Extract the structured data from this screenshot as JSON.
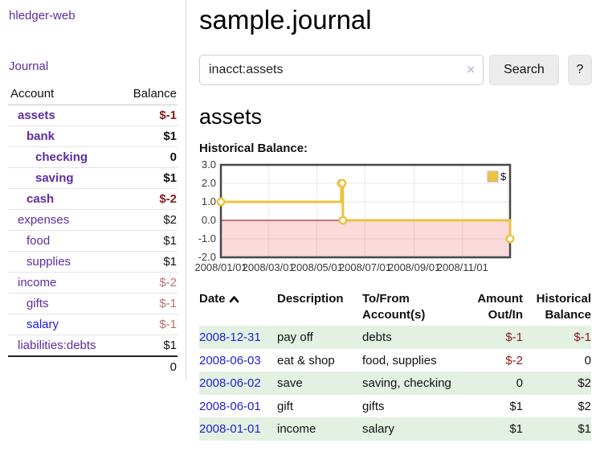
{
  "sidebar": {
    "app_title": "hledger-web",
    "journal_link": "Journal",
    "columns": {
      "account": "Account",
      "balance": "Balance"
    },
    "accounts": [
      {
        "name": "assets",
        "indent": 1,
        "bold": true,
        "balance": "$-1",
        "neg": "strong"
      },
      {
        "name": "bank",
        "indent": 2,
        "bold": true,
        "balance": "$1",
        "neg": "none"
      },
      {
        "name": "checking",
        "indent": 3,
        "bold": true,
        "balance": "0",
        "neg": "none"
      },
      {
        "name": "saving",
        "indent": 3,
        "bold": true,
        "balance": "$1",
        "neg": "none"
      },
      {
        "name": "cash",
        "indent": 2,
        "bold": true,
        "balance": "$-2",
        "neg": "strong"
      },
      {
        "name": "expenses",
        "indent": 1,
        "bold": false,
        "balance": "$2",
        "neg": "none"
      },
      {
        "name": "food",
        "indent": 2,
        "bold": false,
        "balance": "$1",
        "neg": "none"
      },
      {
        "name": "supplies",
        "indent": 2,
        "bold": false,
        "balance": "$1",
        "neg": "none"
      },
      {
        "name": "income",
        "indent": 1,
        "bold": false,
        "balance": "$-2",
        "neg": "soft"
      },
      {
        "name": "gifts",
        "indent": 2,
        "bold": false,
        "balance": "$-1",
        "neg": "soft"
      },
      {
        "name": "salary",
        "indent": 2,
        "bold": false,
        "balance": "$-1",
        "neg": "soft",
        "blue": true
      },
      {
        "name": "liabilities:debts",
        "indent": 1,
        "bold": false,
        "balance": "$1",
        "neg": "none"
      }
    ],
    "total": "0"
  },
  "main": {
    "title": "sample.journal",
    "search": {
      "value": "inacct:assets",
      "clear_icon": "×",
      "search_label": "Search",
      "help_label": "?"
    },
    "account_heading": "assets",
    "chart_label": "Historical Balance:"
  },
  "chart_data": {
    "type": "line",
    "step": true,
    "series": [
      {
        "name": "$",
        "color": "#edc240",
        "points": [
          [
            "2008-01-01",
            1
          ],
          [
            "2008-06-01",
            2
          ],
          [
            "2008-06-02",
            2
          ],
          [
            "2008-06-03",
            0
          ],
          [
            "2008-12-31",
            -1
          ]
        ]
      }
    ],
    "xlim": [
      "2008-01-01",
      "2008-12-31"
    ],
    "ylim": [
      -2,
      3
    ],
    "yticks": [
      3,
      2,
      1,
      0,
      -1,
      -2
    ],
    "ytick_labels": [
      "3.0",
      "2.0",
      "1.0",
      "0.0",
      "-1.0",
      "-2.0"
    ],
    "xticks": [
      "2008-01-01",
      "2008-03-01",
      "2008-05-01",
      "2008-07-01",
      "2008-09-01",
      "2008-11-01"
    ],
    "xtick_labels": [
      "2008/01/01",
      "2008/03/01",
      "2008/05/01",
      "2008/07/01",
      "2008/09/01",
      "2008/11/01"
    ],
    "legend": {
      "position": "top-right",
      "entries": [
        "$"
      ]
    },
    "grid": true,
    "zero_line_color": "#8b0000",
    "negative_region_fill": "#fbdada"
  },
  "register": {
    "columns": {
      "date": "Date",
      "description": "Description",
      "accounts": "To/From Account(s)",
      "amount": "Amount Out/In",
      "balance": "Historical Balance"
    },
    "rows": [
      {
        "date": "2008-12-31",
        "description": "pay off",
        "accounts": "debts",
        "amount": "$-1",
        "amount_neg": true,
        "balance": "$-1",
        "balance_neg": true
      },
      {
        "date": "2008-06-03",
        "description": "eat & shop",
        "accounts": "food, supplies",
        "amount": "$-2",
        "amount_neg": true,
        "balance": "0",
        "balance_neg": false
      },
      {
        "date": "2008-06-02",
        "description": "save",
        "accounts": "saving, checking",
        "amount": "0",
        "amount_neg": false,
        "balance": "$2",
        "balance_neg": false
      },
      {
        "date": "2008-06-01",
        "description": "gift",
        "accounts": "gifts",
        "amount": "$1",
        "amount_neg": false,
        "balance": "$2",
        "balance_neg": false
      },
      {
        "date": "2008-01-01",
        "description": "income",
        "accounts": "salary",
        "amount": "$1",
        "amount_neg": false,
        "balance": "$1",
        "balance_neg": false
      }
    ]
  },
  "colors": {
    "link_purple": "#5f2ca0",
    "link_blue": "#1f1fd8",
    "negative_strong": "#8b1a1a",
    "negative_soft": "#b87070",
    "row_stripe_green": "#e3f1e3",
    "series_yellow": "#edc240",
    "zero_line_red": "#8b0000",
    "negative_region_pink": "#fbdada"
  }
}
